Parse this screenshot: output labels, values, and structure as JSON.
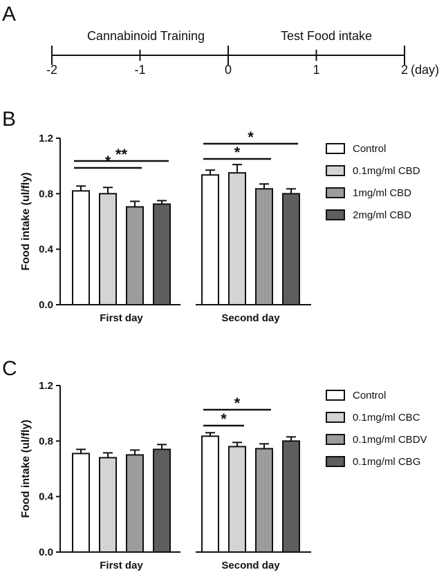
{
  "panels": {
    "a": {
      "letter": "A"
    },
    "b": {
      "letter": "B"
    },
    "c": {
      "letter": "C"
    }
  },
  "timeline": {
    "segment_labels": [
      "Cannabinoid Training",
      "Test Food intake"
    ],
    "tick_values": [
      -2,
      -1,
      0,
      1,
      2
    ],
    "tick_labels": [
      "-2",
      "-1",
      "0",
      "1",
      "2"
    ],
    "unit_label": "(day)"
  },
  "chart_data": [
    {
      "type": "bar",
      "panel": "B",
      "ylabel": "Food intake (ul/fly)",
      "ylim": [
        0,
        1.2
      ],
      "yticks": [
        0.0,
        0.4,
        0.8,
        1.2
      ],
      "ytick_labels": [
        "0.0",
        "0.4",
        "0.8",
        "1.2"
      ],
      "categories": [
        "First day",
        "Second day"
      ],
      "legend_position": "right",
      "series": [
        {
          "name": "Control",
          "color": "#ffffff",
          "values": [
            0.82,
            0.935
          ],
          "errors": [
            0.035,
            0.035
          ]
        },
        {
          "name": "0.1mg/ml CBD",
          "color": "#d4d4d4",
          "values": [
            0.8,
            0.95
          ],
          "errors": [
            0.045,
            0.06
          ]
        },
        {
          "name": "1mg/ml CBD",
          "color": "#9c9c9c",
          "values": [
            0.705,
            0.835
          ],
          "errors": [
            0.04,
            0.035
          ]
        },
        {
          "name": "2mg/ml CBD",
          "color": "#5e5e5e",
          "values": [
            0.725,
            0.8
          ],
          "errors": [
            0.025,
            0.035
          ]
        }
      ],
      "significance": [
        {
          "category": 0,
          "from": 0,
          "to": 2,
          "label": "*"
        },
        {
          "category": 0,
          "from": 0,
          "to": 3,
          "label": "**"
        },
        {
          "category": 1,
          "from": 0,
          "to": 2,
          "label": "*"
        },
        {
          "category": 1,
          "from": 0,
          "to": 3,
          "label": "*"
        }
      ]
    },
    {
      "type": "bar",
      "panel": "C",
      "ylabel": "Food intake (ul/fly)",
      "ylim": [
        0,
        1.2
      ],
      "yticks": [
        0.0,
        0.4,
        0.8,
        1.2
      ],
      "ytick_labels": [
        "0.0",
        "0.4",
        "0.8",
        "1.2"
      ],
      "categories": [
        "First day",
        "Second day"
      ],
      "legend_position": "right",
      "series": [
        {
          "name": "Control",
          "color": "#ffffff",
          "values": [
            0.71,
            0.835
          ],
          "errors": [
            0.03,
            0.025
          ]
        },
        {
          "name": "0.1mg/ml CBC",
          "color": "#d4d4d4",
          "values": [
            0.68,
            0.76
          ],
          "errors": [
            0.035,
            0.03
          ]
        },
        {
          "name": "0.1mg/ml CBDV",
          "color": "#9c9c9c",
          "values": [
            0.7,
            0.745
          ],
          "errors": [
            0.035,
            0.035
          ]
        },
        {
          "name": "0.1mg/ml CBG",
          "color": "#5e5e5e",
          "values": [
            0.74,
            0.8
          ],
          "errors": [
            0.035,
            0.03
          ]
        }
      ],
      "significance": [
        {
          "category": 1,
          "from": 0,
          "to": 1,
          "label": "*"
        },
        {
          "category": 1,
          "from": 0,
          "to": 2,
          "label": "*"
        }
      ]
    }
  ]
}
